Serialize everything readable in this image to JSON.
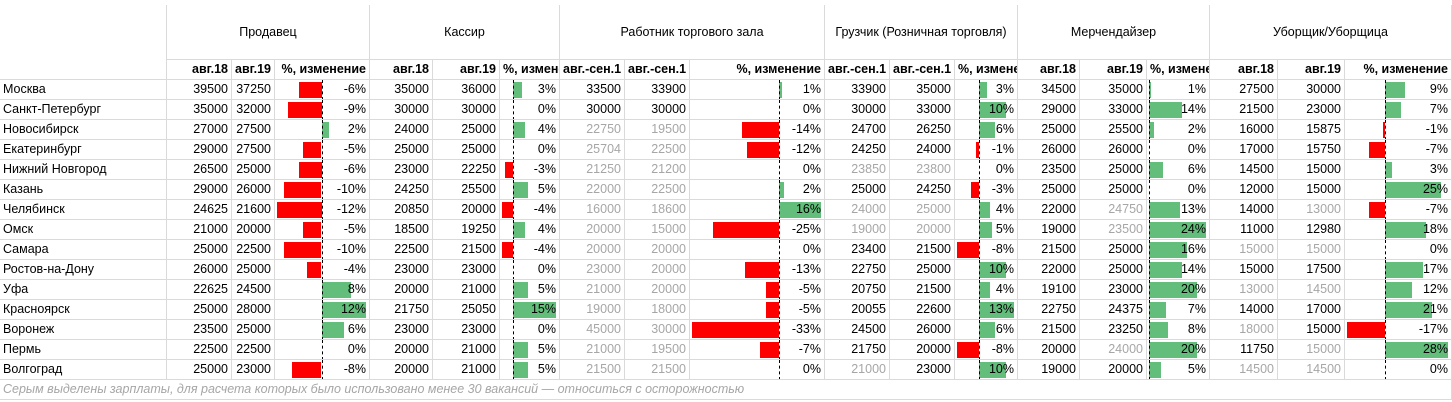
{
  "groups": [
    "Продавец",
    "Кассир",
    "Работник торгового зала",
    "Грузчик (Розничная торговля)",
    "Мерчендайзер",
    "Уборщик/Уборщица"
  ],
  "subheaders": [
    "авг.18",
    "авг.19",
    "%, изменение",
    "авг.18",
    "авг.19",
    "%, измене",
    "авг.-сен.1",
    "авг.-сен.1",
    "%, изменение",
    "авг.-сен.1",
    "авг.-сен.1",
    "%, измене",
    "авг.18",
    "авг.19",
    "%, измене",
    "авг.18",
    "авг.19",
    "%, изменение"
  ],
  "rows": [
    [
      "Москва",
      "39500",
      "37250",
      "-6%",
      "35000",
      "36000",
      "3%",
      "33500",
      "33900",
      "1%",
      "33900",
      "35000",
      "3%",
      "34500",
      "35000",
      "1%",
      "27500",
      "30000",
      "9%"
    ],
    [
      "Санкт-Петербург",
      "35000",
      "32000",
      "-9%",
      "30000",
      "30000",
      "0%",
      "30000",
      "30000",
      "0%",
      "30000",
      "33000",
      "10%",
      "29000",
      "33000",
      "14%",
      "21500",
      "23000",
      "7%"
    ],
    [
      "Новосибирск",
      "27000",
      "27500",
      "2%",
      "24000",
      "25000",
      "4%",
      "22750",
      "19500",
      "-14%",
      "24700",
      "26250",
      "6%",
      "25000",
      "25500",
      "2%",
      "16000",
      "15875",
      "-1%"
    ],
    [
      "Екатеринбург",
      "29000",
      "27500",
      "-5%",
      "25000",
      "25000",
      "0%",
      "25704",
      "22500",
      "-12%",
      "24250",
      "24000",
      "-1%",
      "26000",
      "26000",
      "0%",
      "17000",
      "15750",
      "-7%"
    ],
    [
      "Нижний Новгород",
      "26500",
      "25000",
      "-6%",
      "23000",
      "22250",
      "-3%",
      "21250",
      "21200",
      "0%",
      "23850",
      "23800",
      "0%",
      "23500",
      "25000",
      "6%",
      "14500",
      "15000",
      "3%"
    ],
    [
      "Казань",
      "29000",
      "26000",
      "-10%",
      "24250",
      "25500",
      "5%",
      "22000",
      "22500",
      "2%",
      "25000",
      "24250",
      "-3%",
      "25000",
      "25000",
      "0%",
      "12000",
      "15000",
      "25%"
    ],
    [
      "Челябинск",
      "24625",
      "21600",
      "-12%",
      "20850",
      "20000",
      "-4%",
      "16000",
      "18600",
      "16%",
      "24000",
      "25000",
      "4%",
      "22000",
      "24750",
      "13%",
      "14000",
      "13000",
      "-7%"
    ],
    [
      "Омск",
      "21000",
      "20000",
      "-5%",
      "18500",
      "19250",
      "4%",
      "20000",
      "15000",
      "-25%",
      "19000",
      "20000",
      "5%",
      "19000",
      "23500",
      "24%",
      "11000",
      "12980",
      "18%"
    ],
    [
      "Самара",
      "25000",
      "22500",
      "-10%",
      "22500",
      "21500",
      "-4%",
      "20000",
      "20000",
      "0%",
      "23400",
      "21500",
      "-8%",
      "21500",
      "25000",
      "16%",
      "15000",
      "15000",
      "0%"
    ],
    [
      "Ростов-на-Дону",
      "26000",
      "25000",
      "-4%",
      "23000",
      "23000",
      "0%",
      "23000",
      "20000",
      "-13%",
      "22750",
      "25000",
      "10%",
      "22000",
      "25000",
      "14%",
      "15000",
      "17500",
      "17%"
    ],
    [
      "Уфа",
      "22625",
      "24500",
      "8%",
      "20000",
      "21000",
      "5%",
      "21000",
      "20000",
      "-5%",
      "20750",
      "21500",
      "4%",
      "19100",
      "23000",
      "20%",
      "13000",
      "14500",
      "12%"
    ],
    [
      "Красноярск",
      "25000",
      "28000",
      "12%",
      "21750",
      "25050",
      "15%",
      "19000",
      "18000",
      "-5%",
      "20055",
      "22600",
      "13%",
      "22750",
      "24375",
      "7%",
      "14000",
      "17000",
      "21%"
    ],
    [
      "Воронеж",
      "23500",
      "25000",
      "6%",
      "23000",
      "23000",
      "0%",
      "45000",
      "30000",
      "-33%",
      "24500",
      "26000",
      "6%",
      "21500",
      "23250",
      "8%",
      "18000",
      "15000",
      "-17%"
    ],
    [
      "Пермь",
      "22500",
      "22500",
      "0%",
      "20000",
      "21000",
      "5%",
      "21000",
      "19500",
      "-7%",
      "21750",
      "20000",
      "-8%",
      "20000",
      "24000",
      "20%",
      "11750",
      "15000",
      "28%"
    ],
    [
      "Волгоград",
      "25000",
      "23000",
      "-8%",
      "20000",
      "21000",
      "5%",
      "21500",
      "21500",
      "0%",
      "21000",
      "23000",
      "10%",
      "19000",
      "20000",
      "5%",
      "14500",
      "14500",
      "0%"
    ]
  ],
  "gray_cells": [
    [
      2,
      7
    ],
    [
      2,
      8
    ],
    [
      3,
      7
    ],
    [
      3,
      8
    ],
    [
      4,
      7
    ],
    [
      4,
      8
    ],
    [
      4,
      10
    ],
    [
      4,
      11
    ],
    [
      5,
      7
    ],
    [
      5,
      8
    ],
    [
      6,
      7
    ],
    [
      6,
      8
    ],
    [
      6,
      10
    ],
    [
      6,
      11
    ],
    [
      6,
      14
    ],
    [
      6,
      17
    ],
    [
      7,
      7
    ],
    [
      7,
      8
    ],
    [
      7,
      10
    ],
    [
      7,
      11
    ],
    [
      7,
      14
    ],
    [
      8,
      7
    ],
    [
      8,
      8
    ],
    [
      8,
      16
    ],
    [
      8,
      17
    ],
    [
      9,
      7
    ],
    [
      9,
      8
    ],
    [
      10,
      7
    ],
    [
      10,
      8
    ],
    [
      10,
      16
    ],
    [
      10,
      17
    ],
    [
      11,
      7
    ],
    [
      11,
      8
    ],
    [
      12,
      7
    ],
    [
      12,
      8
    ],
    [
      12,
      16
    ],
    [
      13,
      7
    ],
    [
      13,
      8
    ],
    [
      13,
      14
    ],
    [
      13,
      17
    ],
    [
      14,
      7
    ],
    [
      14,
      8
    ],
    [
      14,
      10
    ],
    [
      14,
      16
    ],
    [
      14,
      17
    ]
  ],
  "footer": "Серым выделены зарплаты, для расчета которых было использовано менее 30 вакансий — относиться с осторожностью"
}
